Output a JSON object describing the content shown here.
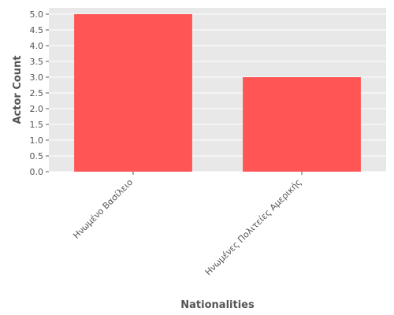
{
  "chart_data": {
    "type": "bar",
    "categories": [
      "Ηνωμένο Βασίλειο",
      "Ηνωμένες Πολιτείες Αμερικής"
    ],
    "values": [
      5,
      3
    ],
    "title": "",
    "xlabel": "Nationalities",
    "ylabel": "Actor Count",
    "ylim": [
      0,
      5.2
    ],
    "yticks": [
      "0.0",
      "0.5",
      "1.0",
      "1.5",
      "2.0",
      "2.5",
      "3.0",
      "3.5",
      "4.0",
      "4.5",
      "5.0"
    ],
    "grid": true,
    "bar_color": "#ff5555",
    "plot_background": "#e8e8e8",
    "grid_color": "#ffffff",
    "text_color": "#555555"
  }
}
